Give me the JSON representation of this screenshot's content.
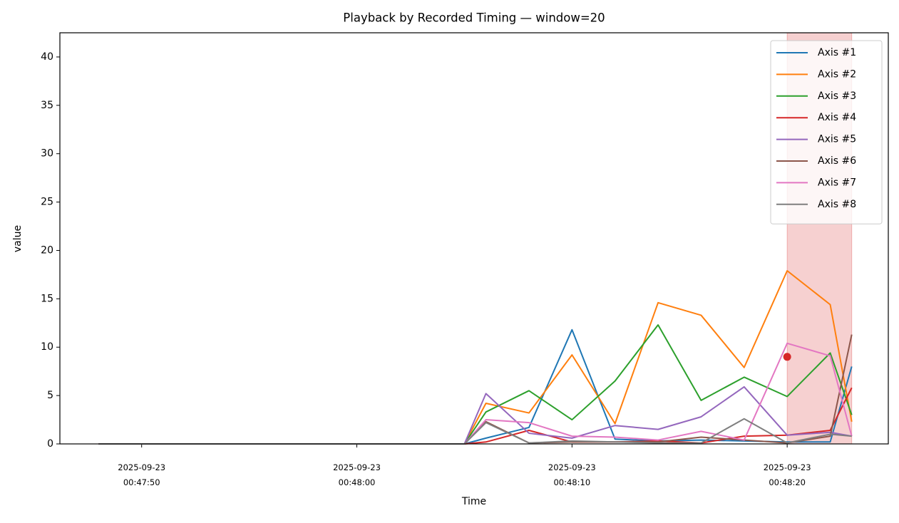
{
  "chart_data": {
    "type": "line",
    "title": "Playback by Recorded Timing — window=20",
    "x_label": "Time",
    "y_label": "value",
    "x": [
      "2025-09-23 00:47:48",
      "2025-09-23 00:48:05",
      "2025-09-23 00:48:06",
      "2025-09-23 00:48:08",
      "2025-09-23 00:48:10",
      "2025-09-23 00:48:12",
      "2025-09-23 00:48:14",
      "2025-09-23 00:48:16",
      "2025-09-23 00:48:18",
      "2025-09-23 00:48:20",
      "2025-09-23 00:48:22",
      "2025-09-23 00:48:23"
    ],
    "series": [
      {
        "name": "Axis #1",
        "color": "#1f77b4",
        "values": [
          0,
          0,
          0.6,
          1.7,
          11.8,
          0.5,
          0.3,
          0.4,
          0.3,
          0.2,
          0.2,
          8.0
        ]
      },
      {
        "name": "Axis #2",
        "color": "#ff7f0e",
        "values": [
          0,
          0,
          4.2,
          3.2,
          9.2,
          2.1,
          14.6,
          13.3,
          7.9,
          17.9,
          14.4,
          2.3
        ]
      },
      {
        "name": "Axis #3",
        "color": "#2ca02c",
        "values": [
          0,
          0,
          3.3,
          5.5,
          2.5,
          6.5,
          12.3,
          4.5,
          6.9,
          4.9,
          9.4,
          3.0
        ]
      },
      {
        "name": "Axis #4",
        "color": "#d62728",
        "values": [
          0,
          0,
          0.2,
          1.4,
          0.2,
          0.2,
          0.3,
          0.1,
          0.8,
          0.9,
          1.4,
          5.8
        ]
      },
      {
        "name": "Axis #5",
        "color": "#9467bd",
        "values": [
          0,
          0,
          5.2,
          1.1,
          0.6,
          1.9,
          1.5,
          2.8,
          5.9,
          0.9,
          1.2,
          0.8
        ]
      },
      {
        "name": "Axis #6",
        "color": "#8c564b",
        "values": [
          0,
          0,
          2.3,
          0.1,
          0.2,
          0.2,
          0.2,
          0.7,
          0.4,
          0.1,
          0.8,
          11.3
        ]
      },
      {
        "name": "Axis #7",
        "color": "#e377c2",
        "values": [
          0,
          0,
          2.5,
          2.2,
          0.8,
          0.7,
          0.4,
          1.3,
          0.4,
          10.4,
          9.1,
          0.8
        ]
      },
      {
        "name": "Axis #8",
        "color": "#7f7f7f",
        "values": [
          0,
          0,
          2.2,
          0.1,
          0.3,
          0.2,
          0.1,
          0.1,
          2.6,
          0.1,
          1.0,
          0.8
        ]
      }
    ],
    "xlim": [
      "2025-09-23 00:47:46.2",
      "2025-09-23 00:48:24.7"
    ],
    "xticks": [
      "2025-09-23 00:47:50",
      "2025-09-23 00:48:00",
      "2025-09-23 00:48:10",
      "2025-09-23 00:48:20"
    ],
    "ylim": [
      0,
      42.5
    ],
    "yticks": [
      0,
      5,
      10,
      15,
      20,
      25,
      30,
      35,
      40
    ],
    "grid": false,
    "legend": "upper right",
    "highlight": {
      "x": [
        "2025-09-23 00:48:20",
        "2025-09-23 00:48:23"
      ],
      "color": "#d62728"
    },
    "marker": {
      "x": "2025-09-23 00:48:20",
      "y": 9.0,
      "color": "#d62728"
    }
  }
}
